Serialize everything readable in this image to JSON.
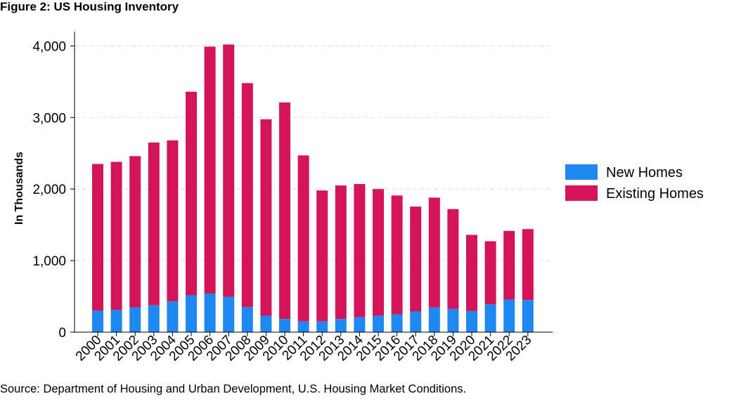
{
  "figure_title": "Figure 2: US Housing Inventory",
  "source_note": "Source: Department of Housing and Urban Development, U.S. Housing Market Conditions.",
  "colors": {
    "new_homes": "#1E88F0",
    "existing_homes": "#D31459",
    "grid": "#dddddd",
    "axis": "#000000"
  },
  "chart_data": {
    "type": "bar",
    "stacked": true,
    "title": "",
    "xlabel": "",
    "ylabel": "In Thousands",
    "ylim": [
      0,
      4200
    ],
    "yticks": [
      0,
      1000,
      2000,
      3000,
      4000
    ],
    "ytick_labels": [
      "0",
      "1,000",
      "2,000",
      "3,000",
      "4,000"
    ],
    "grid": true,
    "legend_position": "right",
    "categories": [
      "2000",
      "2001",
      "2002",
      "2003",
      "2004",
      "2005",
      "2006",
      "2007",
      "2008",
      "2009",
      "2010",
      "2011",
      "2012",
      "2013",
      "2014",
      "2015",
      "2016",
      "2017",
      "2018",
      "2019",
      "2020",
      "2021",
      "2022",
      "2023"
    ],
    "series": [
      {
        "name": "New Homes",
        "values": [
          300,
          310,
          345,
          375,
          430,
          515,
          540,
          495,
          350,
          230,
          185,
          150,
          150,
          185,
          210,
          230,
          250,
          290,
          345,
          325,
          295,
          390,
          455,
          450
        ]
      },
      {
        "name": "Existing Homes",
        "values": [
          2050,
          2070,
          2115,
          2275,
          2250,
          2845,
          3450,
          3525,
          3130,
          2745,
          3025,
          2320,
          1830,
          1865,
          1860,
          1770,
          1660,
          1465,
          1535,
          1395,
          1065,
          880,
          960,
          990
        ]
      }
    ]
  }
}
